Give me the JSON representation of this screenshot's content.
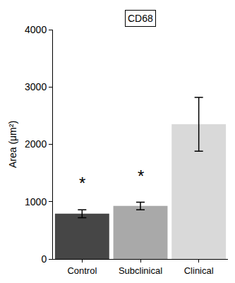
{
  "chart_data": {
    "type": "bar",
    "title": "CD68",
    "y_label": "Area (μm²)",
    "categories": [
      "Control",
      "Subclinical",
      "Clinical"
    ],
    "values": [
      790,
      925,
      2350
    ],
    "errors": [
      70,
      65,
      470
    ],
    "colors": [
      "#464646",
      "#a9a9a9",
      "#d9d9d9"
    ],
    "ylim": [
      0,
      4000
    ],
    "yticks": [
      0,
      1000,
      2000,
      3000,
      4000
    ],
    "grid": false,
    "annotations": [
      {
        "category": "Control",
        "text": "*"
      },
      {
        "category": "Subclinical",
        "text": "*"
      }
    ]
  }
}
